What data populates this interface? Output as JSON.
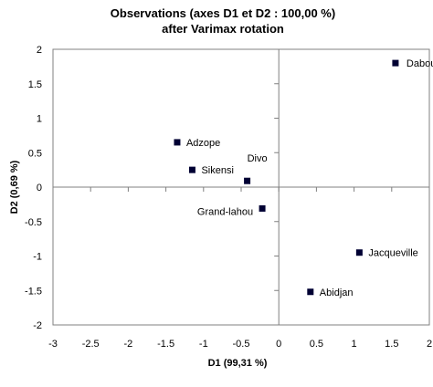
{
  "chart_data": {
    "type": "scatter",
    "title": "Observations (axes D1 et D2 : 100,00 %)",
    "subtitle": "after Varimax rotation",
    "xlabel": "D1 (99,31 %)",
    "ylabel": "D2 (0,69 %)",
    "xlim": [
      -3,
      2
    ],
    "ylim": [
      -2,
      2
    ],
    "x_ticks": [
      -3,
      -2.5,
      -2,
      -1.5,
      -1,
      -0.5,
      0,
      0.5,
      1,
      1.5,
      2
    ],
    "x_tick_labels": [
      "-3",
      "-2.5",
      "-2",
      "-1.5",
      "-1",
      "-0.5",
      "0",
      "0.5",
      "1",
      "1.5",
      "2"
    ],
    "y_ticks": [
      -2,
      -1.5,
      -1,
      -0.5,
      0,
      0.5,
      1,
      1.5,
      2
    ],
    "y_tick_labels": [
      "-2",
      "-1.5",
      "-1",
      "-0.5",
      "0",
      "0.5",
      "1",
      "1.5",
      "2"
    ],
    "grid": false,
    "legend": "none",
    "marker_color": "#000033",
    "points": [
      {
        "label": "Dabou",
        "x": 1.55,
        "y": 1.8
      },
      {
        "label": "Adzope",
        "x": -1.35,
        "y": 0.65
      },
      {
        "label": "Sikensi",
        "x": -1.15,
        "y": 0.25
      },
      {
        "label": "Divo",
        "x": -0.42,
        "y": 0.09
      },
      {
        "label": "Grand-lahou",
        "x": -0.22,
        "y": -0.31
      },
      {
        "label": "Jacqueville",
        "x": 1.07,
        "y": -0.95
      },
      {
        "label": "Abidjan",
        "x": 0.42,
        "y": -1.52
      }
    ]
  }
}
